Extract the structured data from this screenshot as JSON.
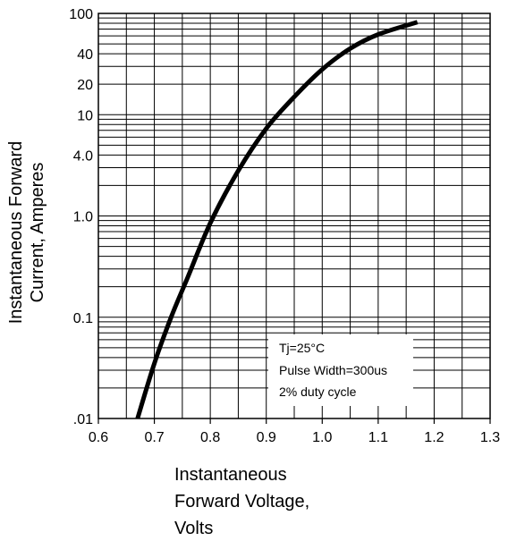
{
  "chart_data": {
    "type": "line",
    "title": "",
    "xlabel_lines": [
      "Instantaneous",
      "Forward Voltage,",
      "Volts"
    ],
    "ylabel_lines": [
      "Instantaneous Forward",
      "Current, Amperes"
    ],
    "xlim": [
      0.6,
      1.3
    ],
    "ylim": [
      0.01,
      100
    ],
    "y_scale": "log",
    "grid": true,
    "x_ticks": [
      {
        "value": 0.6,
        "label": "0.6"
      },
      {
        "value": 0.7,
        "label": "0.7"
      },
      {
        "value": 0.8,
        "label": "0.8"
      },
      {
        "value": 0.9,
        "label": "0.9"
      },
      {
        "value": 1.0,
        "label": "1.0"
      },
      {
        "value": 1.1,
        "label": "1.1"
      },
      {
        "value": 1.2,
        "label": "1.2"
      },
      {
        "value": 1.3,
        "label": "1.3"
      }
    ],
    "y_ticks": [
      {
        "value": 0.01,
        "label": ".01"
      },
      {
        "value": 0.1,
        "label": "0.1"
      },
      {
        "value": 1,
        "label": "1.0"
      },
      {
        "value": 4,
        "label": "4.0"
      },
      {
        "value": 10,
        "label": "10"
      },
      {
        "value": 20,
        "label": "20"
      },
      {
        "value": 40,
        "label": "40"
      },
      {
        "value": 100,
        "label": "100"
      }
    ],
    "series": [
      {
        "color": "#000000",
        "x": [
          0.67,
          0.7,
          0.73,
          0.76,
          0.8,
          0.85,
          0.9,
          0.95,
          1.0,
          1.05,
          1.1,
          1.17
        ],
        "y": [
          0.01,
          0.035,
          0.1,
          0.25,
          0.85,
          2.8,
          7.3,
          15,
          28,
          45,
          62,
          82
        ]
      }
    ],
    "annotations": [
      "Tj=25°C",
      "Pulse Width=300us",
      "2% duty cycle"
    ]
  }
}
